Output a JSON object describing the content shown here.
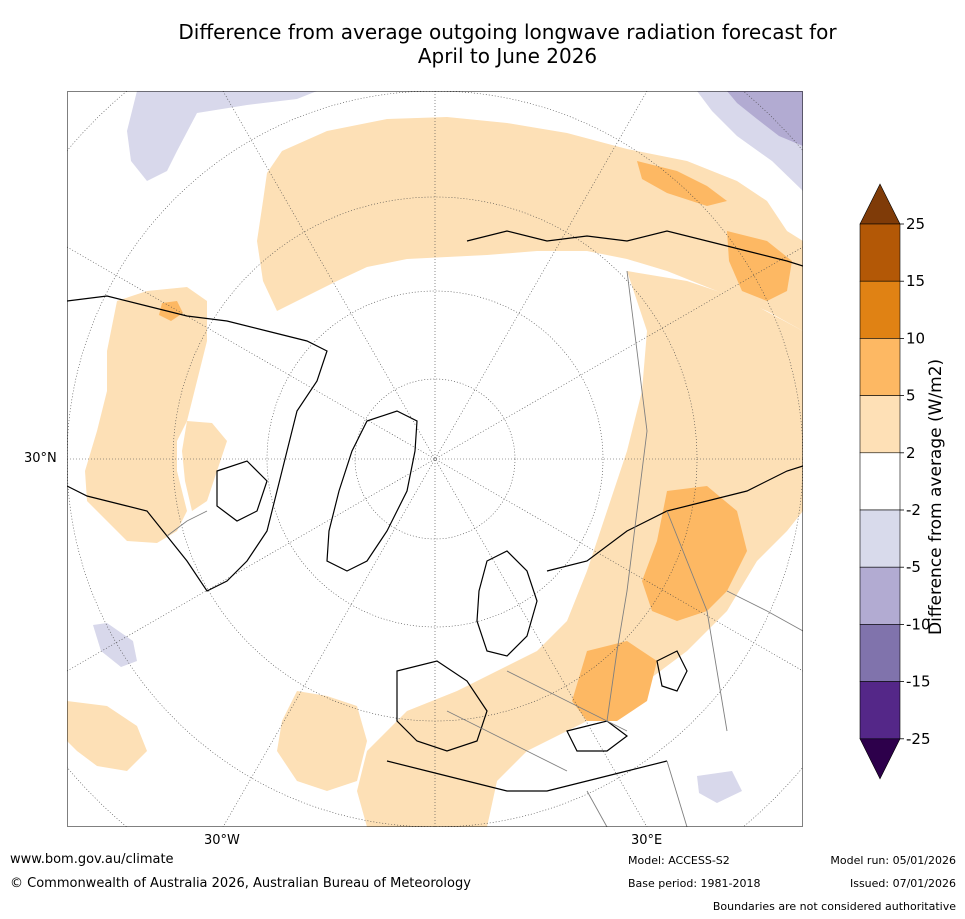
{
  "title_line1": "Difference from average outgoing longwave radiation forecast for",
  "title_line2": "April to June 2026",
  "map": {
    "lat_label": "30°N",
    "lon_label_left": "30°W",
    "lon_label_right": "30°E",
    "colors": {
      "ocean_plain": "#ffffff",
      "plus_2_5": "#fde0b6",
      "plus_5_10": "#fdb863",
      "minus_2_5": "#d8d8eb",
      "minus_5_10": "#b2abd2",
      "land_outline": "#000000",
      "border": "#808080"
    }
  },
  "colorbar": {
    "label": "Difference from average (W/m2)",
    "ticks": [
      "25",
      "15",
      "10",
      "5",
      "2",
      "-2",
      "-5",
      "-10",
      "-15",
      "-25"
    ],
    "colors": [
      "#7f3b08",
      "#b35806",
      "#e08214",
      "#fdb863",
      "#fee0b6",
      "#ffffff",
      "#d8daeb",
      "#b2abd2",
      "#8073ac",
      "#542788",
      "#2d004b"
    ]
  },
  "footer": {
    "website": "www.bom.gov.au/climate",
    "copyright": "© Commonwealth of Australia 2026, Australian Bureau of Meteorology",
    "model": "Model: ACCESS-S2",
    "base_period": "Base period: 1981-2018",
    "model_run": "Model run: 05/01/2026",
    "issued": "Issued: 07/01/2026",
    "disclaimer": "Boundaries are not considered authoritative"
  }
}
